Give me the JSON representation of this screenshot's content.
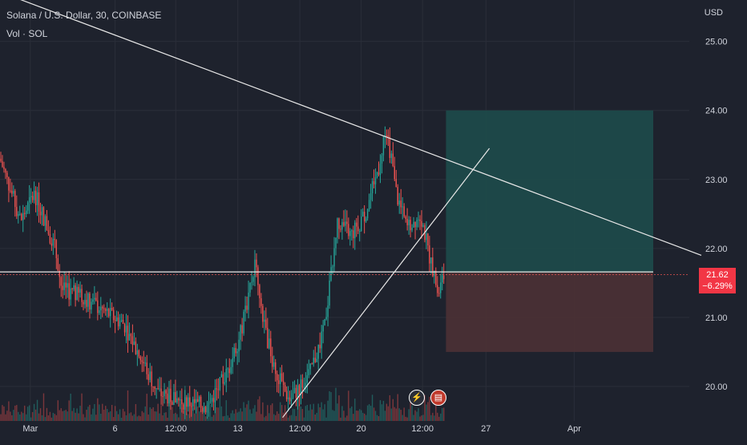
{
  "header": {
    "title": "Solana / U.S. Dollar, 30, COINBASE",
    "volume_label": "Vol · SOL"
  },
  "axis_unit": "USD",
  "price_tag": {
    "price": "21.62",
    "change": "−6.29%"
  },
  "colors": {
    "background": "#1e222d",
    "grid": "#2a2e39",
    "up": "#26a69a",
    "down": "#ef5350",
    "profit_zone": "#1e4a4a",
    "loss_zone": "#4a3035",
    "trendline": "#e8e8e8",
    "price_tag": "#f23645"
  },
  "icons": [
    "lightning-icon",
    "us-flag-icon"
  ],
  "chart_data": {
    "type": "candlestick",
    "title": "Solana / U.S. Dollar, 30, COINBASE",
    "xlabel": "",
    "ylabel": "USD",
    "ylim": [
      19.5,
      25.6
    ],
    "y_ticks": [
      "25.00",
      "24.00",
      "23.00",
      "22.00",
      "21.00",
      "20.00"
    ],
    "x_ticks": [
      "Mar",
      "6",
      "12:00",
      "13",
      "12:00",
      "20",
      "12:00",
      "27",
      "Apr"
    ],
    "grid": true,
    "last_price": 21.62,
    "change_percent": "−6.29%",
    "approx_close_path": [
      {
        "t": 0.0,
        "p": 23.3
      },
      {
        "t": 0.03,
        "p": 22.4
      },
      {
        "t": 0.05,
        "p": 22.8
      },
      {
        "t": 0.08,
        "p": 22.0
      },
      {
        "t": 0.09,
        "p": 21.4
      },
      {
        "t": 0.12,
        "p": 21.3
      },
      {
        "t": 0.15,
        "p": 21.1
      },
      {
        "t": 0.18,
        "p": 20.9
      },
      {
        "t": 0.2,
        "p": 20.5
      },
      {
        "t": 0.23,
        "p": 19.9
      },
      {
        "t": 0.26,
        "p": 19.8
      },
      {
        "t": 0.3,
        "p": 19.7
      },
      {
        "t": 0.33,
        "p": 20.2
      },
      {
        "t": 0.35,
        "p": 20.8
      },
      {
        "t": 0.37,
        "p": 21.8
      },
      {
        "t": 0.38,
        "p": 21.0
      },
      {
        "t": 0.4,
        "p": 20.2
      },
      {
        "t": 0.42,
        "p": 19.8
      },
      {
        "t": 0.45,
        "p": 20.2
      },
      {
        "t": 0.47,
        "p": 20.8
      },
      {
        "t": 0.49,
        "p": 22.4
      },
      {
        "t": 0.51,
        "p": 22.2
      },
      {
        "t": 0.53,
        "p": 22.5
      },
      {
        "t": 0.55,
        "p": 23.2
      },
      {
        "t": 0.56,
        "p": 23.8
      },
      {
        "t": 0.575,
        "p": 22.8
      },
      {
        "t": 0.59,
        "p": 22.3
      },
      {
        "t": 0.61,
        "p": 22.5
      },
      {
        "t": 0.625,
        "p": 21.8
      },
      {
        "t": 0.635,
        "p": 21.35
      },
      {
        "t": 0.645,
        "p": 21.62
      }
    ],
    "drawings": {
      "descending_trendline": {
        "from": [
          0.17,
          25.4
        ],
        "to": [
          1.0,
          21.9
        ]
      },
      "ascending_trendline": {
        "from": [
          0.41,
          19.55
        ],
        "to": [
          0.71,
          23.45
        ]
      },
      "horizontal_line": {
        "price": 21.66
      },
      "long_position": {
        "t_start": 0.647,
        "t_end": 1.0,
        "entry": 21.65,
        "target": 24.0,
        "stop": 20.5
      }
    }
  }
}
